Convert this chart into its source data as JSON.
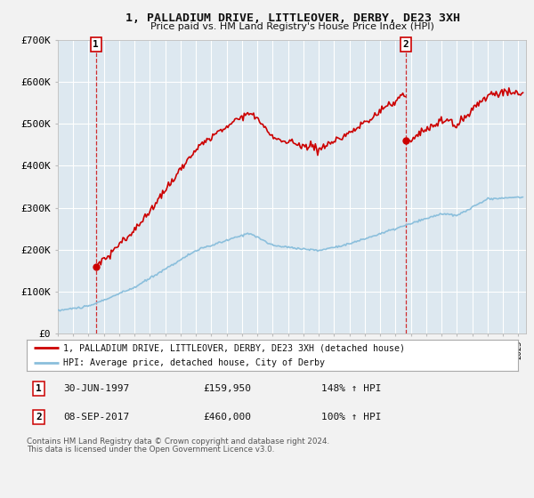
{
  "title": "1, PALLADIUM DRIVE, LITTLEOVER, DERBY, DE23 3XH",
  "subtitle": "Price paid vs. HM Land Registry's House Price Index (HPI)",
  "ylim": [
    0,
    700000
  ],
  "xlim_start": 1995.3,
  "xlim_end": 2025.5,
  "sale1_date": 1997.49,
  "sale1_price": 159950,
  "sale2_date": 2017.68,
  "sale2_price": 460000,
  "legend_line1": "1, PALLADIUM DRIVE, LITTLEOVER, DERBY, DE23 3XH (detached house)",
  "legend_line2": "HPI: Average price, detached house, City of Derby",
  "hpi_color": "#8bbfdc",
  "price_color": "#cc0000",
  "bg_color": "#f2f2f2",
  "plot_bg_color": "#dde8f0",
  "grid_color": "#ffffff",
  "footnote1": "Contains HM Land Registry data © Crown copyright and database right 2024.",
  "footnote2": "This data is licensed under the Open Government Licence v3.0."
}
